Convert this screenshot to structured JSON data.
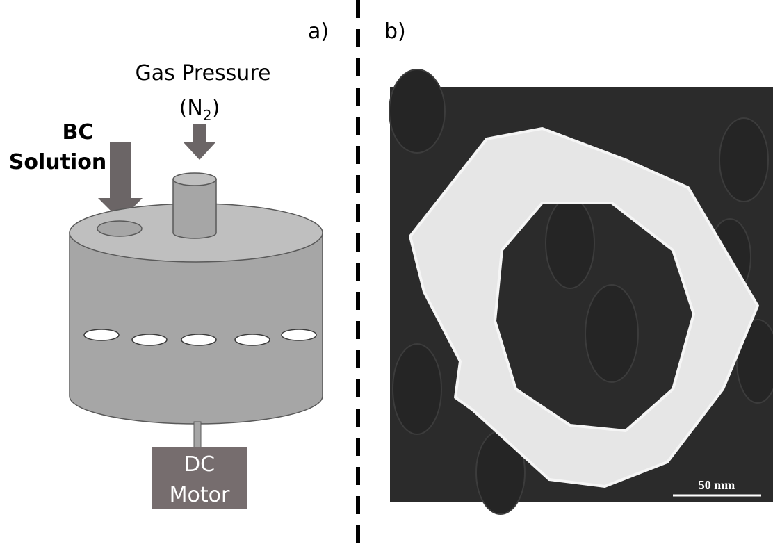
{
  "panel_a": {
    "label": "a)",
    "gas_pressure": "Gas Pressure",
    "gas_formula": {
      "open": "(N",
      "subscript": "2",
      "close": ")"
    },
    "bc_solution": [
      "BC",
      "Solution"
    ],
    "motor": [
      "DC",
      "Motor"
    ]
  },
  "panel_b": {
    "label": "b)",
    "scale_bar": "50 mm"
  }
}
